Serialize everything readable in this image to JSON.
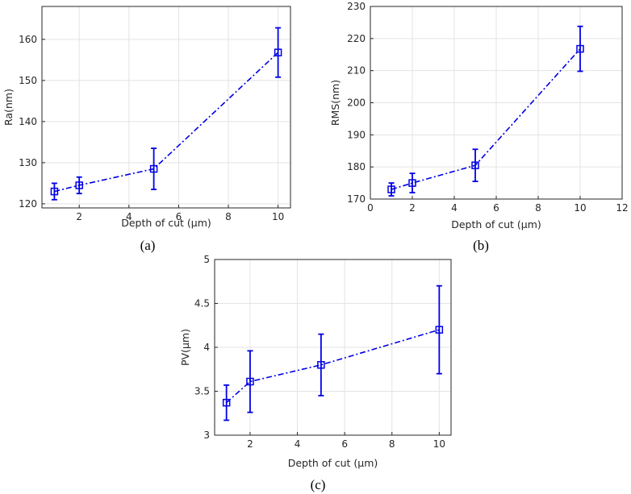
{
  "chart_data": [
    {
      "type": "line",
      "panel": "a",
      "caption": "(a)",
      "xlabel": "Depth of cut (μm)",
      "ylabel": "Ra(nm)",
      "xlim": [
        0.5,
        10.5
      ],
      "ylim": [
        119,
        168
      ],
      "xticks": [
        2,
        4,
        6,
        8,
        10
      ],
      "yticks": [
        120,
        130,
        140,
        150,
        160
      ],
      "grid": true,
      "series": [
        {
          "name": "Ra",
          "x": [
            1,
            2,
            5,
            10
          ],
          "y": [
            123,
            124.5,
            128.5,
            156.8
          ],
          "err": [
            2,
            2,
            5,
            6
          ]
        }
      ]
    },
    {
      "type": "line",
      "panel": "b",
      "caption": "(b)",
      "xlabel": "Depth of cut (μm)",
      "ylabel": "RMS(nm)",
      "xlim": [
        0,
        12
      ],
      "ylim": [
        170,
        230
      ],
      "xticks": [
        0,
        2,
        4,
        6,
        8,
        10,
        12
      ],
      "yticks": [
        170,
        180,
        190,
        200,
        210,
        220,
        230
      ],
      "grid": true,
      "series": [
        {
          "name": "RMS",
          "x": [
            1,
            2,
            5,
            10
          ],
          "y": [
            173,
            175,
            180.5,
            216.8
          ],
          "err": [
            2,
            3,
            5,
            7
          ]
        }
      ]
    },
    {
      "type": "line",
      "panel": "c",
      "caption": "(c)",
      "xlabel": "Depth of cut (μm)",
      "ylabel": "PV(μm)",
      "xlim": [
        0.5,
        10.5
      ],
      "ylim": [
        3,
        5
      ],
      "xticks": [
        2,
        4,
        6,
        8,
        10
      ],
      "yticks": [
        3,
        3.5,
        4,
        4.5,
        5
      ],
      "grid": true,
      "series": [
        {
          "name": "PV",
          "x": [
            1,
            2,
            5,
            10
          ],
          "y": [
            3.37,
            3.61,
            3.8,
            4.2
          ],
          "err": [
            0.2,
            0.35,
            0.35,
            0.5
          ]
        }
      ]
    }
  ],
  "colors": {
    "series": "#0000e6",
    "axis": "#262626",
    "grid": "#e3e3e3"
  }
}
